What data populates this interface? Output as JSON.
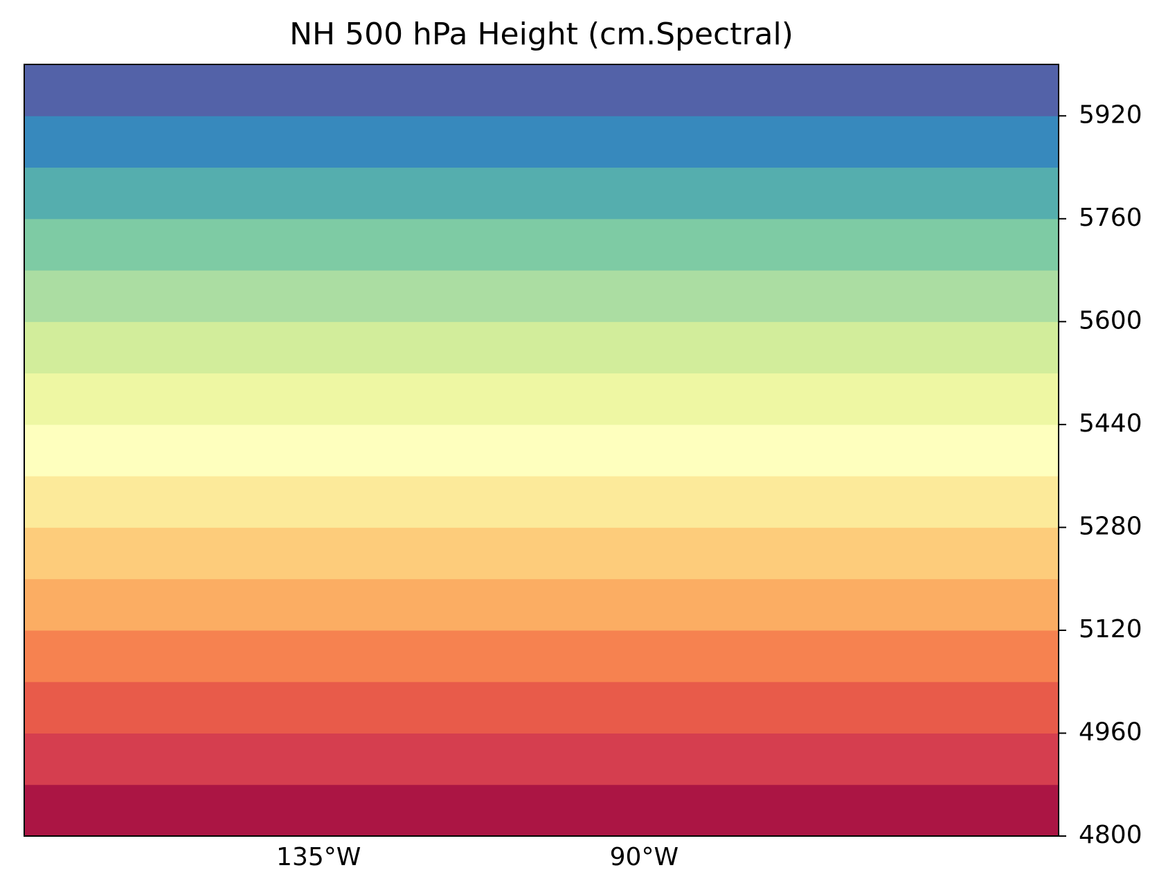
{
  "chart_data": {
    "type": "contourf",
    "title": "NH 500 hPa Height (cm.Spectral)",
    "levels": [
      4800,
      4880,
      4960,
      5040,
      5120,
      5200,
      5280,
      5360,
      5440,
      5520,
      5600,
      5680,
      5760,
      5840,
      5920,
      6000
    ],
    "colors": [
      "#ab1544",
      "#d53e4f",
      "#e85b4a",
      "#f68250",
      "#fbad63",
      "#fdcc7b",
      "#fcea9a",
      "#feffbe",
      "#eef7a3",
      "#d2ed9b",
      "#abdda2",
      "#7ecba4",
      "#55aeae",
      "#3789bd",
      "#5362a8"
    ],
    "ylim": [
      4800,
      6000
    ],
    "yticks": [
      4800,
      4960,
      5120,
      5280,
      5440,
      5600,
      5760,
      5920
    ],
    "xlim": [
      -175.7,
      -32.7
    ],
    "xticks": [
      {
        "value": -135,
        "label": "135°W"
      },
      {
        "value": -90,
        "label": "90°W"
      }
    ]
  }
}
